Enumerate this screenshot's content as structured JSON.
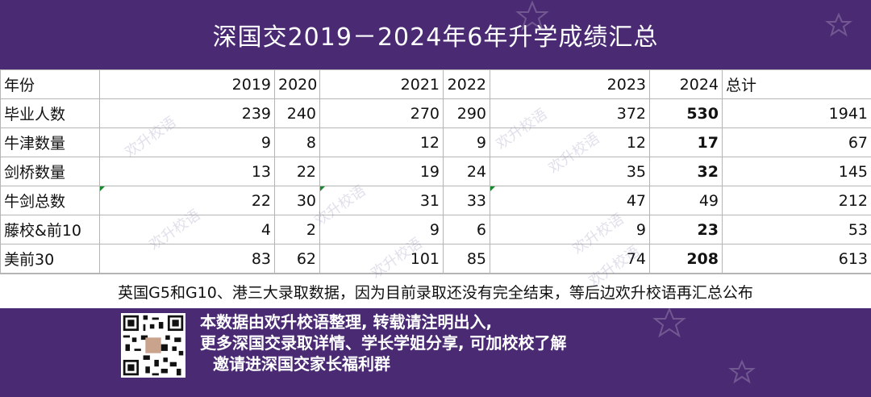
{
  "title": "深国交2019－2024年6年升学成绩汇总",
  "table": {
    "header": {
      "label": "年份",
      "years": [
        "2019",
        "2020",
        "2021",
        "2022",
        "2023",
        "2024"
      ],
      "total": "总计"
    },
    "rows": [
      {
        "label": "毕业人数",
        "values": [
          "239",
          "240",
          "270",
          "290",
          "372",
          "530"
        ],
        "total": "1941"
      },
      {
        "label": "牛津数量",
        "values": [
          "9",
          "8",
          "12",
          "9",
          "12",
          "17"
        ],
        "total": "67"
      },
      {
        "label": "剑桥数量",
        "values": [
          "13",
          "22",
          "19",
          "24",
          "35",
          "32"
        ],
        "total": "145"
      },
      {
        "label": "牛剑总数",
        "values": [
          "22",
          "30",
          "31",
          "33",
          "47",
          "49"
        ],
        "total": "212"
      },
      {
        "label": "藤校&前10",
        "values": [
          "4",
          "2",
          "9",
          "6",
          "9",
          "23"
        ],
        "total": "53"
      },
      {
        "label": "美前30",
        "values": [
          "83",
          "62",
          "101",
          "85",
          "74",
          "208"
        ],
        "total": "613"
      }
    ],
    "highlight_color": "#c0001a"
  },
  "note": "英国G5和G10、港三大录取数据，因为目前录取还没有完全结束，等后边欢升校语再汇总公布",
  "watermark": "欢升校语",
  "footer": {
    "line1": "本数据由欢升校语整理, 转载请注明出入,",
    "line2": "更多深国交录取详情、学长学姐分享, 可加校校了解",
    "line3": "邀请进深国交家长福利群",
    "qr_icon": "qr-code-icon"
  },
  "colors": {
    "background": "#4a2a73",
    "title_text": "#ffffff"
  }
}
